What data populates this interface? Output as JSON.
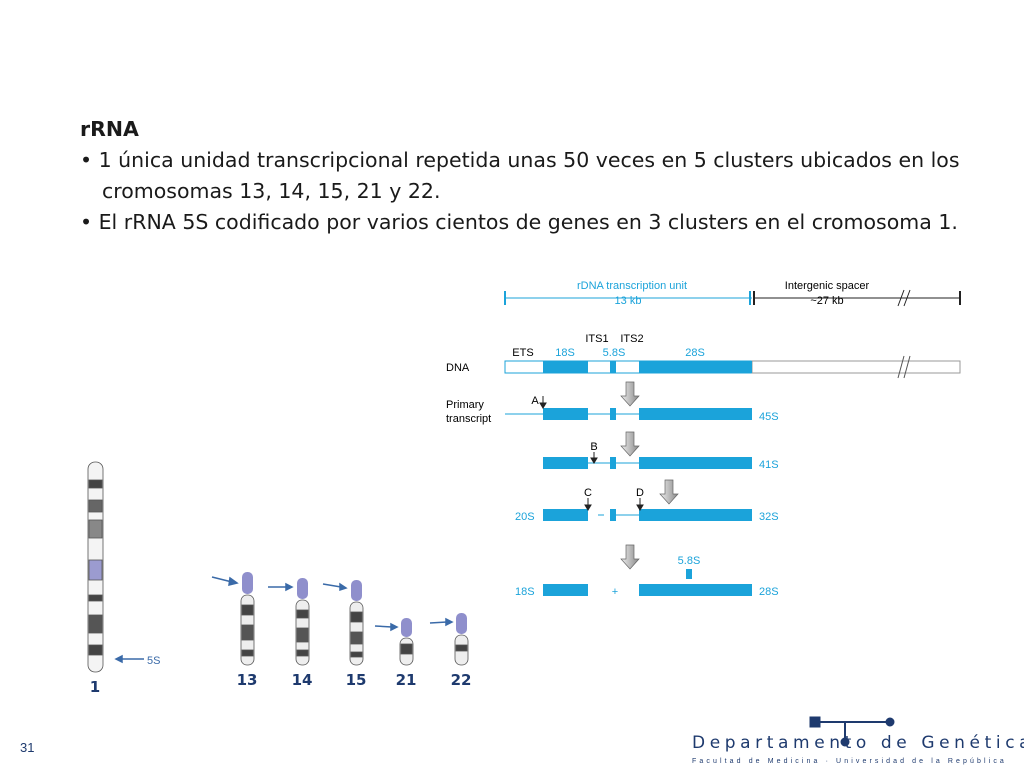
{
  "slide": {
    "heading": "rRNA",
    "bullets": [
      "1 única unidad transcripcional repetida unas 50 veces en 5 clusters ubicados en los cromosomas 13, 14, 15, 21 y 22.",
      "El  rRNA 5S codificado por varios cientos de genes en 3 clusters en el cromosoma 1."
    ],
    "diagram": {
      "unit_label": "rDNA transcription unit",
      "unit_size": "13 kb",
      "spacer_label": "Intergenic spacer",
      "spacer_size": "~27 kb",
      "regions": [
        "ETS",
        "18S",
        "5.8S",
        "28S"
      ],
      "its": [
        "ITS1",
        "ITS2"
      ],
      "dna_label": "DNA",
      "primary_label": [
        "Primary",
        "transcript"
      ],
      "sites": [
        "A",
        "B",
        "C",
        "D"
      ],
      "products": [
        "45S",
        "41S",
        "20S",
        "32S",
        "18S",
        "+",
        "28S",
        "5.8S"
      ]
    },
    "chromosomes": [
      "1",
      "13",
      "14",
      "15",
      "21",
      "22"
    ],
    "five_s": "5S",
    "page_number": "31",
    "logo": {
      "name": "Departamento de Genética",
      "sub": "Facultad de Medicina · Universidad de la República"
    }
  }
}
